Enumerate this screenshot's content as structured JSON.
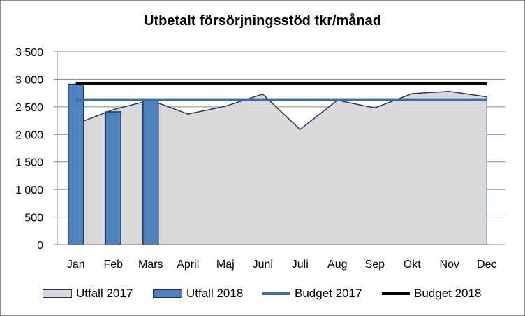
{
  "chart_data": {
    "type": "bar",
    "title": "Utbetalt försörjningsstöd tkr/månad",
    "categories": [
      "Jan",
      "Feb",
      "Mars",
      "April",
      "Maj",
      "Juni",
      "Juli",
      "Aug",
      "Sep",
      "Okt",
      "Nov",
      "Dec"
    ],
    "ylim": [
      0,
      3500
    ],
    "yticks": [
      0,
      500,
      1000,
      1500,
      2000,
      2500,
      3000,
      3500
    ],
    "ytick_labels": [
      "0",
      "500",
      "1 000",
      "1 500",
      "2 000",
      "2 500",
      "3 000",
      "3 500"
    ],
    "grid": true,
    "legend_position": "bottom",
    "series": [
      {
        "name": "Utfall 2017",
        "kind": "area",
        "color": "#d9d9d9",
        "edge_color": "#1f3864",
        "values": [
          2190,
          2450,
          2620,
          2370,
          2510,
          2730,
          2090,
          2620,
          2480,
          2740,
          2780,
          2680
        ]
      },
      {
        "name": "Utfall 2018",
        "kind": "bar",
        "color": "#4f81bd",
        "edge_color": "#17375e",
        "values": [
          2910,
          2410,
          2630,
          null,
          null,
          null,
          null,
          null,
          null,
          null,
          null,
          null
        ]
      },
      {
        "name": "Budget 2017",
        "kind": "line",
        "color": "#3f6fa0",
        "values": [
          2630,
          2630,
          2630,
          2630,
          2630,
          2630,
          2630,
          2630,
          2630,
          2630,
          2630,
          2630
        ]
      },
      {
        "name": "Budget 2018",
        "kind": "line",
        "color": "#000000",
        "values": [
          2920,
          2920,
          2920,
          2920,
          2920,
          2920,
          2920,
          2920,
          2920,
          2920,
          2920,
          2920
        ]
      }
    ]
  }
}
